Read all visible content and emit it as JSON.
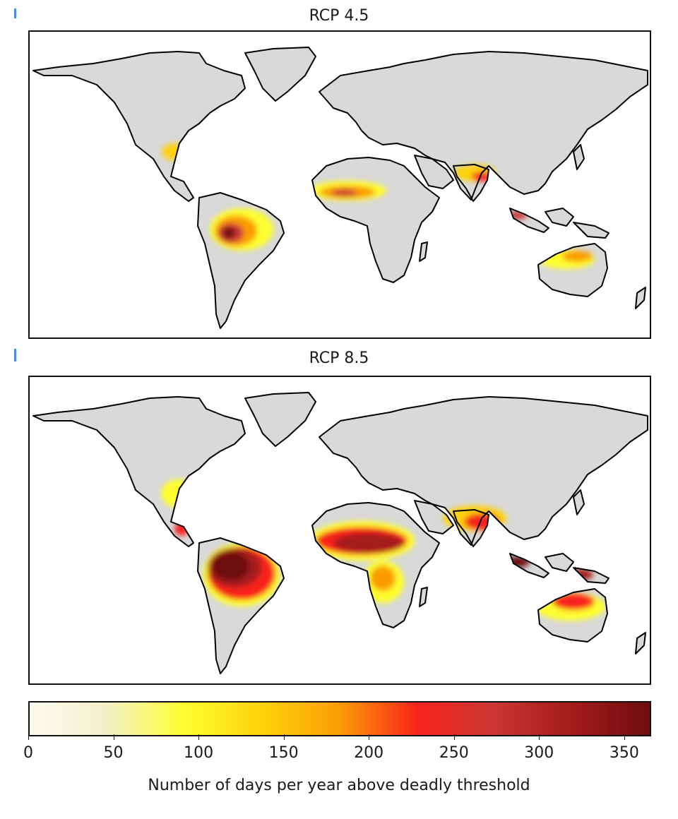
{
  "panels": [
    {
      "title": "RCP 4.5",
      "severity": 1
    },
    {
      "title": "RCP 8.5",
      "severity": 2
    }
  ],
  "colorbar": {
    "ticks": [
      "0",
      "50",
      "100",
      "150",
      "200",
      "250",
      "300",
      "350"
    ],
    "tick_values": [
      0,
      50,
      100,
      150,
      200,
      250,
      300,
      350
    ],
    "max": 365,
    "label": "Number of days per year above deadly threshold",
    "stops": [
      "#fbfbf2",
      "#f3f0c6",
      "#fefe2e",
      "#fdd20a",
      "#fb9b06",
      "#f8241a",
      "#c93634",
      "#a41b1b",
      "#6d0d0d"
    ]
  },
  "colors": {
    "land": "#d9d9d9",
    "coast": "#000000"
  }
}
